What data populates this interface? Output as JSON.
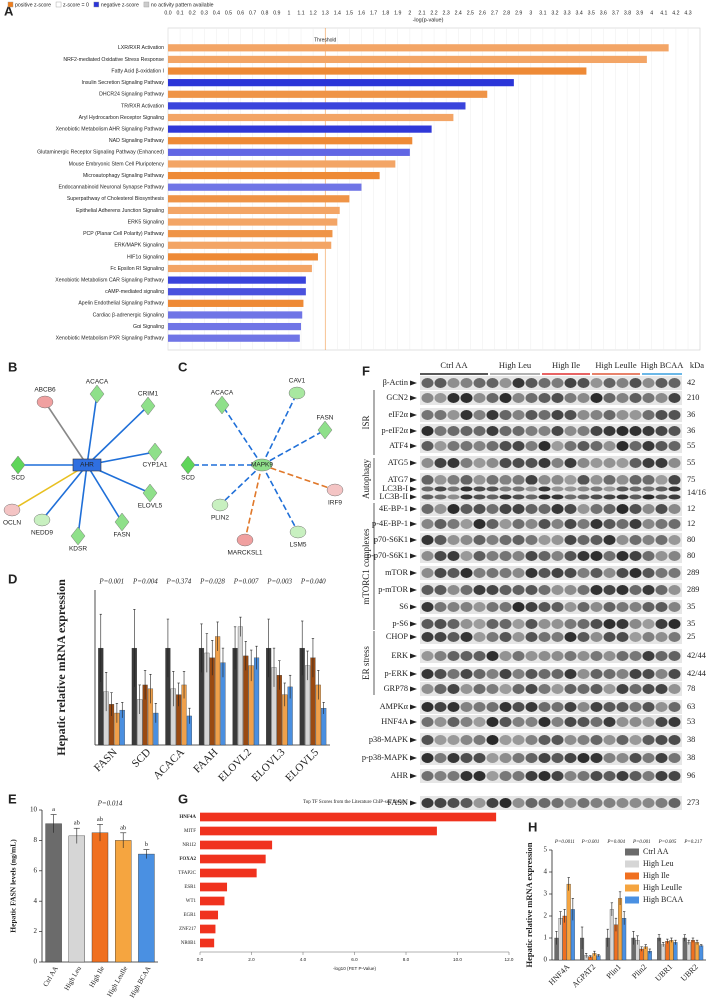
{
  "chart_data": [
    {
      "label": "A",
      "type": "hbar",
      "xaxis": "top",
      "grid": true,
      "legend": [
        {
          "name": "positive z-score",
          "color": "#f07f1e"
        },
        {
          "name": "z-score = 0",
          "color": "#ffffff"
        },
        {
          "name": "negative z-score",
          "color": "#2b35d8"
        },
        {
          "name": "no activity pattern available",
          "color": "#cccccc"
        }
      ],
      "xlabel": "-log(p-value)",
      "threshold": {
        "label": "Threshold",
        "value": 1.3,
        "color": "#f08a2c"
      },
      "categories": [
        "LXR/RXR Activation",
        "NRF2-mediated Oxidative Stress Response",
        "Fatty Acid β-oxidation I",
        "Insulin Secretion Signaling Pathway",
        "DHCR24 Signaling Pathway",
        "TR/RXR Activation",
        "Aryl Hydrocarbon Receptor Signaling",
        "Xenobiotic Metabolism AHR Signaling Pathway",
        "NAD Signaling Pathway",
        "Glutaminergic Receptor Signaling Pathway (Enhanced)",
        "Mouse Embryonic Stem Cell Pluripotency",
        "Microautophagy Signaling Pathway",
        "Endocannabinoid Neuronal Synapse Pathway",
        "Superpathway of Cholesterol Biosynthesis",
        "Epithelial Adherens Junction Signaling",
        "ERK5 Signaling",
        "PCP (Planar Cell Polarity) Pathway",
        "ERK/MAPK Signaling",
        "HIF1α Signaling",
        "Fc Epsilon RI Signaling",
        "Xenobiotic Metabolism CAR Signaling Pathway",
        "cAMP-mediated signaling",
        "Apelin Endothelial Signaling Pathway",
        "Cardiac β-adrenergic Signaling",
        "Gαi Signaling",
        "Xenobiotic Metabolism PXR Signaling Pathway"
      ],
      "values": [
        4.14,
        3.96,
        3.46,
        2.86,
        2.64,
        2.46,
        2.36,
        2.18,
        2.02,
        2.0,
        1.88,
        1.75,
        1.6,
        1.5,
        1.42,
        1.4,
        1.36,
        1.35,
        1.24,
        1.19,
        1.14,
        1.14,
        1.12,
        1.11,
        1.1,
        1.09
      ],
      "colors": [
        "#f3a566",
        "#f3a566",
        "#ee8a36",
        "#2b35d8",
        "#ef9447",
        "#3a44dc",
        "#f3a566",
        "#3038d8",
        "#ee8a36",
        "#6166e4",
        "#f3a566",
        "#ee8a36",
        "#7075e6",
        "#ef9447",
        "#f3a566",
        "#f3a566",
        "#ef9447",
        "#f3a566",
        "#ee8a36",
        "#f3a566",
        "#3a44dc",
        "#4a52de",
        "#ee8a36",
        "#7075e6",
        "#7075e6",
        "#7075e6"
      ],
      "xlim": [
        0,
        4.3
      ],
      "xticks": [
        {
          "value": 0,
          "label": "0.0"
        },
        0.1,
        0.2,
        0.3,
        0.4,
        0.5,
        0.6,
        0.7,
        0.8,
        0.9,
        1,
        1.1,
        1.2,
        1.3,
        1.4,
        1.5,
        1.6,
        1.7,
        1.8,
        1.9,
        2,
        2.1,
        2.2,
        2.3,
        2.4,
        2.5,
        2.6,
        2.7,
        2.8,
        2.9,
        3,
        3.1,
        3.2,
        3.3,
        3.4,
        3.5,
        3.6,
        3.7,
        3.8,
        3.9,
        4,
        4.1,
        4.2,
        4.3
      ]
    },
    {
      "label": "D",
      "type": "grouped-bar",
      "ylabel": "Hepatic relative mRNA expression",
      "pvalues": [
        "P=0.001",
        "P=0.004",
        "P=0.374",
        "P=0.028",
        "P=0.007",
        "P=0.003",
        "P=0.040"
      ],
      "categories": [
        "FASN",
        "SCD",
        "ACACA",
        "FAAH",
        "ELOVL2",
        "ELOVL3",
        "ELOVL5"
      ],
      "series": [
        {
          "name": "Ctrl AA",
          "color": "#3a3a3a",
          "values": [
            1,
            1,
            1,
            1,
            1,
            1,
            1
          ],
          "errors": [
            0.35,
            0.4,
            0.3,
            0.25,
            0.22,
            0.3,
            0.28
          ]
        },
        {
          "name": "High Leu",
          "color": "#d6d6d6",
          "values": [
            0.55,
            0.47,
            0.58,
            0.95,
            1.22,
            0.8,
            0.82
          ],
          "errors": [
            0.2,
            0.15,
            0.18,
            0.2,
            0.1,
            0.2,
            0.15
          ]
        },
        {
          "name": "High Ile",
          "color": "#9a4a12",
          "values": [
            0.42,
            0.62,
            0.52,
            0.9,
            0.92,
            0.72,
            0.9
          ],
          "errors": [
            0.12,
            0.15,
            0.12,
            0.18,
            0.15,
            0.15,
            0.2
          ]
        },
        {
          "name": "High LeuIle",
          "color": "#f0a04a",
          "values": [
            0.33,
            0.58,
            0.62,
            1.12,
            0.82,
            0.52,
            0.62
          ],
          "errors": [
            0.1,
            0.15,
            0.14,
            0.15,
            0.16,
            0.12,
            0.15
          ]
        },
        {
          "name": "High BCAA",
          "color": "#4a8fe0",
          "values": [
            0.36,
            0.33,
            0.3,
            0.85,
            0.9,
            0.6,
            0.38
          ],
          "errors": [
            0.08,
            0.1,
            0.08,
            0.15,
            0.12,
            0.12,
            0.06
          ]
        }
      ],
      "ylim": [
        0,
        1.6
      ]
    },
    {
      "label": "E",
      "type": "bar",
      "ylabel": "Hepatic FASN levels (ng/mL)",
      "pvalue": "P=0.014",
      "categories": [
        "Ctrl AA",
        "High Leu",
        "High Ile",
        "High LeuIle",
        "High BCAA"
      ],
      "values": [
        9.1,
        8.3,
        8.5,
        8.0,
        7.1
      ],
      "errors": [
        0.6,
        0.5,
        0.55,
        0.5,
        0.3
      ],
      "letters": [
        "a",
        "ab",
        "ab",
        "ab",
        "b"
      ],
      "colors": [
        "#6b6b6b",
        "#d6d6d6",
        "#f07020",
        "#f5a540",
        "#4a90e2"
      ],
      "ylim": [
        0,
        10
      ],
      "yticks": [
        0,
        2,
        4,
        6,
        8,
        10
      ]
    },
    {
      "label": "G",
      "type": "hbar",
      "xaxis": "bottom",
      "title": "Top TF Scores from the Literature ChIP-seq library",
      "xlabel": "-log10 (FET P-Value)",
      "color": "#f0321e",
      "categories": [
        "HNF4A",
        "MITF",
        "NR1I2",
        "FOXA2",
        "TFAP2C",
        "ESR1",
        "WT1",
        "EGR1",
        "ZNF217",
        "NR0B1"
      ],
      "values": [
        11.5,
        9.2,
        2.8,
        2.55,
        2.2,
        1.05,
        0.95,
        0.7,
        0.6,
        0.55
      ],
      "label_colors": [
        "#e0201a",
        "#666666",
        "#666666",
        "#e0201a",
        "#666666",
        "#666666",
        "#666666",
        "#666666",
        "#666666",
        "#666666"
      ],
      "xlim": [
        0,
        12
      ],
      "xticks": [
        {
          "value": 0,
          "label": "0.0"
        },
        {
          "value": 2,
          "label": "2.0"
        },
        {
          "value": 4,
          "label": "4.0"
        },
        {
          "value": 6,
          "label": "6.0"
        },
        {
          "value": 8,
          "label": "8.0"
        },
        {
          "value": 10,
          "label": "10.0"
        },
        {
          "value": 12,
          "label": "12.0"
        }
      ]
    },
    {
      "label": "H",
      "type": "grouped-bar",
      "ylabel": "Hepatic relative mRNA expression",
      "legend": "upper right",
      "pvalues": [
        "P=0.0011",
        "P<0.001",
        "P=0.004",
        "P=0.001",
        "P=0.005",
        "P=0.217"
      ],
      "categories": [
        "HNF4A",
        "AGPAT2",
        "Plin1",
        "Plin2",
        "UBR1",
        "UBR2"
      ],
      "series": [
        {
          "name": "Ctrl AA",
          "color": "#6b6b6b",
          "values": [
            1,
            1,
            1,
            1,
            1,
            1
          ],
          "errors": [
            0.3,
            0.5,
            0.4,
            0.3,
            0.15,
            0.15
          ]
        },
        {
          "name": "High Leu",
          "color": "#d6d6d6",
          "values": [
            1.9,
            0.2,
            2.3,
            0.9,
            0.7,
            0.8
          ],
          "errors": [
            0.3,
            0.1,
            0.3,
            0.2,
            0.1,
            0.1
          ]
        },
        {
          "name": "High Ile",
          "color": "#f07020",
          "values": [
            2.0,
            0.15,
            1.6,
            0.5,
            0.85,
            0.9
          ],
          "errors": [
            0.3,
            0.05,
            0.3,
            0.1,
            0.1,
            0.1
          ]
        },
        {
          "name": "High LeuIle",
          "color": "#f5a540",
          "values": [
            3.45,
            0.3,
            2.8,
            0.6,
            0.9,
            0.8
          ],
          "errors": [
            0.3,
            0.1,
            0.3,
            0.1,
            0.1,
            0.1
          ]
        },
        {
          "name": "High BCAA",
          "color": "#4a90e2",
          "values": [
            2.3,
            0.2,
            1.9,
            0.4,
            0.8,
            0.65
          ],
          "errors": [
            0.5,
            0.05,
            0.3,
            0.1,
            0.1,
            0.05
          ]
        }
      ],
      "ylim": [
        0,
        5
      ],
      "yticks": [
        0,
        1,
        2,
        3,
        4,
        5
      ]
    }
  ],
  "networks": [
    {
      "label": "B",
      "nodes": [
        {
          "label": "AHR",
          "color": "#2f6fe0"
        },
        {
          "label": "ABCB6",
          "color": "#f0a0a0"
        },
        {
          "label": "ACACA",
          "color": "#8fe08a"
        },
        {
          "label": "CRIM1",
          "color": "#8fe08a"
        },
        {
          "label": "SCD",
          "color": "#5fd65a"
        },
        {
          "label": "CYP1A1",
          "color": "#8fe08a"
        },
        {
          "label": "OCLN",
          "color": "#f4c4c4"
        },
        {
          "label": "ELOVL5",
          "color": "#8fe08a"
        },
        {
          "label": "NEDD9",
          "color": "#c8f0c0"
        },
        {
          "label": "KDSR",
          "color": "#8fe08a"
        },
        {
          "label": "FASN",
          "color": "#8fe08a"
        }
      ]
    },
    {
      "label": "C",
      "nodes": [
        {
          "label": "MAPK9",
          "color": "#8fe08a"
        },
        {
          "label": "ACACA",
          "color": "#8fe08a"
        },
        {
          "label": "CAV1",
          "color": "#a8e8a0"
        },
        {
          "label": "SCD",
          "color": "#5fd65a"
        },
        {
          "label": "FASN",
          "color": "#8fe08a"
        },
        {
          "label": "IRF9",
          "color": "#f4c4c4"
        },
        {
          "label": "PLIN2",
          "color": "#c8f0c0"
        },
        {
          "label": "LSM5",
          "color": "#c8f0c0"
        },
        {
          "label": "MARCKSL1",
          "color": "#f0a0a0"
        }
      ]
    }
  ],
  "blot": {
    "label": "F",
    "unit": "kDa",
    "groups": [
      {
        "label": "Ctrl AA",
        "color": "#222222"
      },
      {
        "label": "High Leu",
        "color": "#999999"
      },
      {
        "label": "High Ile",
        "color": "#e03030"
      },
      {
        "label": "High LeuIle",
        "color": "#e05a3a"
      },
      {
        "label": "High BCAA",
        "color": "#3aa0e0"
      }
    ],
    "sections": [
      "ISR",
      "Autophagy",
      "mTORC1 complexes",
      "ER stress"
    ],
    "rows": [
      {
        "label": "β-Actin",
        "kDa": 42
      },
      {
        "label": "GCN2",
        "kDa": 210
      },
      {
        "label": "eIF2α",
        "kDa": 36
      },
      {
        "label": "p-eIF2α",
        "kDa": 36
      },
      {
        "label": "ATF4",
        "kDa": 55
      },
      {
        "label": "ATG5",
        "kDa": 55
      },
      {
        "label": "ATG7",
        "kDa": 75
      },
      {
        "label": "LC3B-I",
        "kDa": "14/16"
      },
      {
        "label": "LC3B-II"
      },
      {
        "label": "4E-BP-1",
        "kDa": 12
      },
      {
        "label": "p-4E-BP-1",
        "kDa": 12
      },
      {
        "label": "p70-S6K1",
        "kDa": 80
      },
      {
        "label": "p-p70-S6K1",
        "kDa": 80
      },
      {
        "label": "mTOR",
        "kDa": 289
      },
      {
        "label": "p-mTOR",
        "kDa": 289
      },
      {
        "label": "S6",
        "kDa": 35
      },
      {
        "label": "p-S6",
        "kDa": 35
      },
      {
        "label": "CHOP",
        "kDa": 25
      },
      {
        "label": "ERK",
        "kDa": "42/44"
      },
      {
        "label": "p-ERK",
        "kDa": "42/44"
      },
      {
        "label": "GRP78",
        "kDa": 78
      },
      {
        "label": "AMPKα",
        "kDa": 63
      },
      {
        "label": "HNF4A",
        "kDa": 53
      },
      {
        "label": "p38-MAPK",
        "kDa": 38
      },
      {
        "label": "p-p38-MAPK",
        "kDa": 38
      },
      {
        "label": "AHR",
        "kDa": 96
      },
      {
        "label": "FASN",
        "kDa": 273
      }
    ]
  }
}
